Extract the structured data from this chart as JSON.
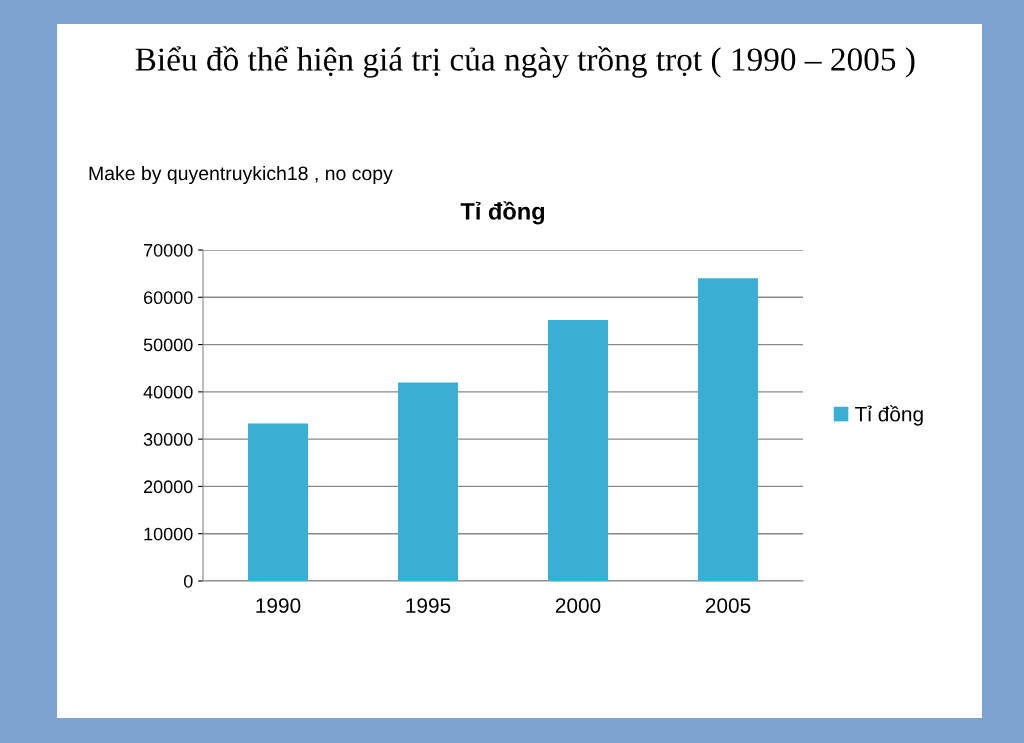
{
  "chart_data": {
    "type": "bar",
    "title": "Biểu đồ thể hiện giá trị của ngày trồng trọt ( 1990 – 2005 )",
    "subtitle": "Tỉ đồng",
    "annotations": [
      "Make by quyentruykich18 , no copy"
    ],
    "categories": [
      "1990",
      "1995",
      "2000",
      "2005"
    ],
    "series": [
      {
        "name": "Tỉ đồng",
        "color": "#3aafd4",
        "values": [
          33300,
          42000,
          55200,
          64000
        ]
      }
    ],
    "ylim": [
      0,
      70000
    ],
    "yticks": [
      0,
      10000,
      20000,
      30000,
      40000,
      50000,
      60000,
      70000
    ],
    "grid": "y",
    "legend": "right"
  }
}
